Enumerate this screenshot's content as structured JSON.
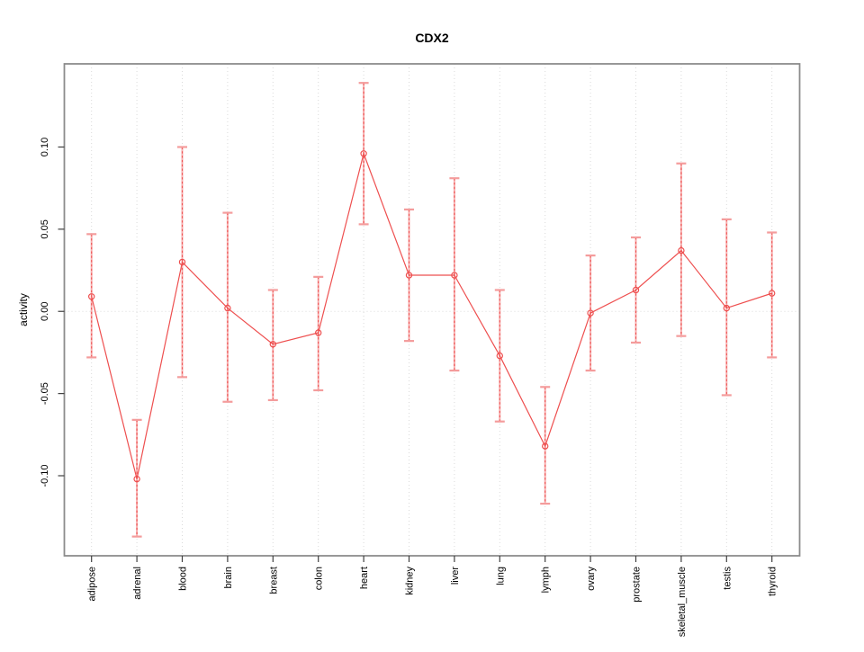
{
  "title": "CDX2",
  "chart_data": {
    "type": "line",
    "title": "CDX2",
    "xlabel": "",
    "ylabel": "activity",
    "categories": [
      "adipose",
      "adrenal",
      "blood",
      "brain",
      "breast",
      "colon",
      "heart",
      "kidney",
      "liver",
      "lung",
      "lymph",
      "ovary",
      "prostate",
      "skeletal_muscle",
      "testis",
      "thyroid"
    ],
    "series": [
      {
        "name": "activity",
        "values": [
          0.009,
          -0.102,
          0.03,
          0.002,
          -0.02,
          -0.013,
          0.096,
          0.022,
          0.022,
          -0.027,
          -0.082,
          -0.001,
          0.013,
          0.037,
          0.002,
          0.011
        ]
      }
    ],
    "error_upper": [
      0.047,
      -0.066,
      0.1,
      0.06,
      0.013,
      0.021,
      0.139,
      0.062,
      0.081,
      0.013,
      -0.046,
      0.034,
      0.045,
      0.09,
      0.056,
      0.048
    ],
    "error_lower": [
      -0.028,
      -0.137,
      -0.04,
      -0.055,
      -0.054,
      -0.048,
      0.053,
      -0.018,
      -0.036,
      -0.067,
      -0.117,
      -0.036,
      -0.019,
      -0.015,
      -0.051,
      -0.028
    ],
    "ylim": [
      -0.1487,
      0.1506
    ],
    "ytick_values": [
      -0.1,
      -0.05,
      0.0,
      0.05,
      0.1
    ],
    "ytick_labels": [
      "-0.10",
      "-0.05",
      "0.00",
      "0.05",
      "0.10"
    ],
    "marker": "open-circle",
    "legend": "none",
    "grid": {
      "vertical": "dotted line at each category",
      "horizontal": "dotted line at y = 0"
    },
    "colors": {
      "line": "#ee4f4f",
      "marker": "#ee4f4f",
      "error_bar_solid": "#f7b0b0",
      "error_bar_cap": "#f49c9c",
      "error_bar_dash": "#ee5252",
      "grid": "#dadada",
      "box": "#8c8c8c",
      "tick": "#404040",
      "text": "#000000",
      "background": "#ffffff"
    }
  }
}
